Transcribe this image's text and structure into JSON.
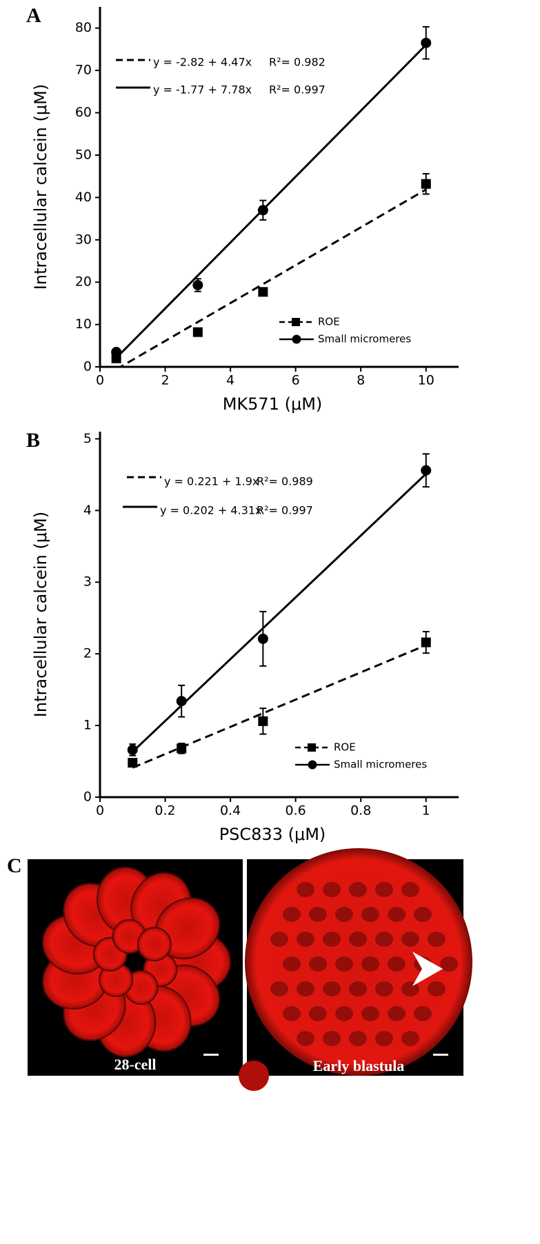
{
  "chart_data": [
    {
      "type": "scatter",
      "panel": "A",
      "x_label": "MK571 (μM)",
      "y_label": "Intracellular calcein (μM)",
      "xlim": [
        0,
        11
      ],
      "xticks": [
        0,
        2,
        4,
        6,
        8,
        10
      ],
      "ylim": [
        0,
        85
      ],
      "yticks": [
        0,
        10,
        20,
        30,
        40,
        50,
        60,
        70,
        80
      ],
      "legend": "lower right",
      "series": [
        {
          "name": "ROE",
          "color": "#000000",
          "marker": "square",
          "line_style": "dashed",
          "x": [
            0.5,
            3,
            5,
            10
          ],
          "values": [
            2.0,
            8.2,
            17.7,
            43.2
          ],
          "errors": [
            0.5,
            0.6,
            0.9,
            2.4
          ],
          "fit": {
            "intercept": -2.82,
            "slope": 4.47,
            "equation": "y = -2.82 + 4.47x",
            "r2_text": "R²= 0.982"
          }
        },
        {
          "name": "Small micromeres",
          "color": "#000000",
          "marker": "circle",
          "line_style": "solid",
          "x": [
            0.5,
            3,
            5,
            10
          ],
          "values": [
            3.5,
            19.3,
            37.0,
            76.5
          ],
          "errors": [
            0.6,
            1.5,
            2.3,
            3.8
          ],
          "fit": {
            "intercept": -1.77,
            "slope": 7.78,
            "equation": "y = -1.77 + 7.78x",
            "r2_text": "R²= 0.997"
          }
        }
      ]
    },
    {
      "type": "scatter",
      "panel": "B",
      "x_label": "PSC833 (μM)",
      "y_label": "Intracellular calcein (μM)",
      "xlim": [
        0,
        1.1
      ],
      "xticks": [
        0,
        0.2,
        0.4,
        0.6,
        0.8,
        1
      ],
      "ylim": [
        0,
        5.1
      ],
      "yticks": [
        0,
        1,
        2,
        3,
        4,
        5
      ],
      "legend": "lower right",
      "series": [
        {
          "name": "ROE",
          "color": "#000000",
          "marker": "square",
          "line_style": "dashed",
          "x": [
            0.1,
            0.25,
            0.5,
            1
          ],
          "values": [
            0.48,
            0.68,
            1.06,
            2.16
          ],
          "errors": [
            0.05,
            0.07,
            0.18,
            0.15
          ],
          "fit": {
            "intercept": 0.221,
            "slope": 1.9,
            "equation": "y = 0.221 + 1.9x",
            "r2_text": "R²= 0.989"
          }
        },
        {
          "name": "Small micromeres",
          "color": "#000000",
          "marker": "circle",
          "line_style": "solid",
          "x": [
            0.1,
            0.25,
            0.5,
            1
          ],
          "values": [
            0.66,
            1.34,
            2.21,
            4.56
          ],
          "errors": [
            0.08,
            0.22,
            0.38,
            0.23
          ],
          "fit": {
            "intercept": 0.202,
            "slope": 4.31,
            "equation": "y = 0.202 + 4.31x",
            "r2_text": "R²= 0.997"
          }
        }
      ]
    }
  ],
  "panel_c": {
    "label": "C",
    "images": [
      {
        "label": "28-cell"
      },
      {
        "label": "Early blastula"
      }
    ]
  }
}
